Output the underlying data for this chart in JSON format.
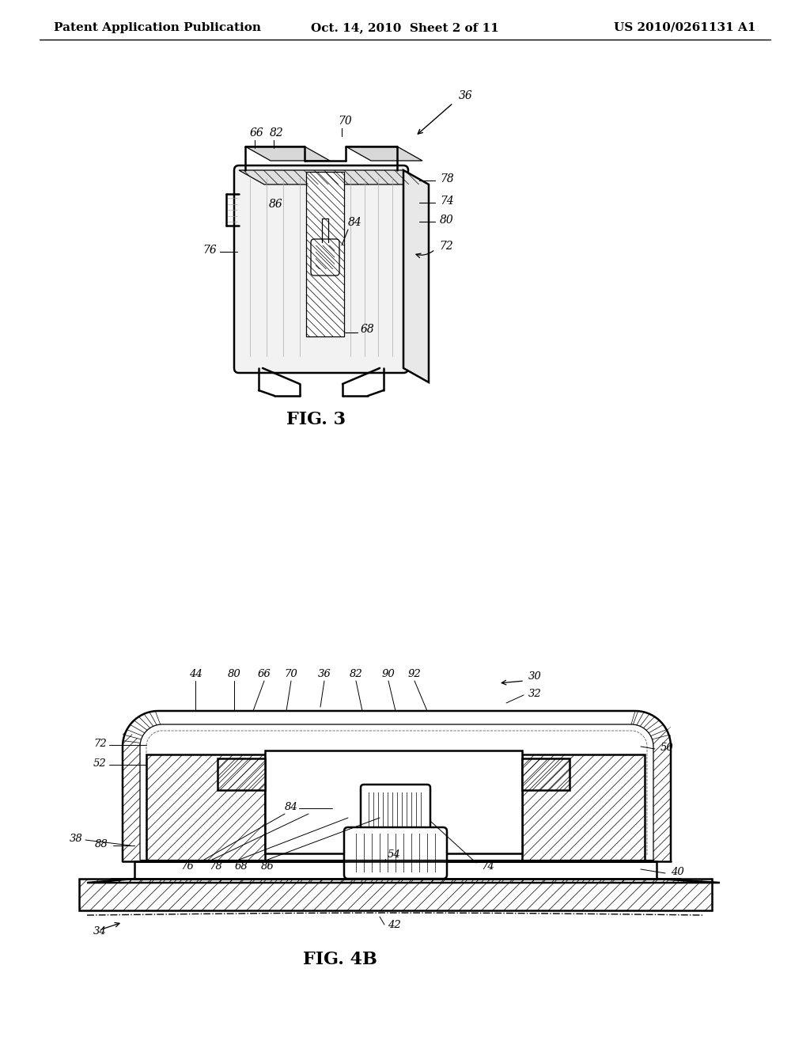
{
  "background_color": "#ffffff",
  "header_left": "Patent Application Publication",
  "header_center": "Oct. 14, 2010  Sheet 2 of 11",
  "header_right": "US 2010/0261131 A1",
  "fig3_label": "FIG. 3",
  "fig4b_label": "FIG. 4B",
  "header_fontsize": 11,
  "fig_label_fontsize": 16,
  "annotation_fontsize": 10,
  "line_color": "#000000"
}
